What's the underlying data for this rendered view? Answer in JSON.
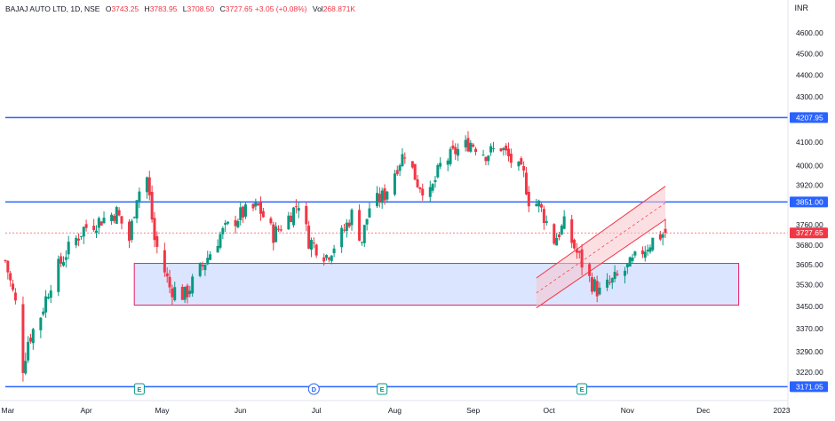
{
  "legend": {
    "symbol": "BAJAJ AUTO LTD, 1D, NSE",
    "open_label": "O",
    "open": "3743.25",
    "high_label": "H",
    "high": "3783.95",
    "low_label": "L",
    "low": "3708.50",
    "close_label": "C",
    "close": "3727.65",
    "change": "+3.05 (+0.08%)",
    "vol_label": "Vol",
    "volume": "268.871K"
  },
  "currency": "INR",
  "colors": {
    "up": "#089981",
    "down": "#f23645",
    "line": "#2962ff",
    "zone_fill": "#dbe5ff",
    "zone_border": "#e91e63",
    "channel_fill": "#f7c5cc",
    "channel_border": "#f23645",
    "axis_text": "#131722",
    "grid": "#f0f3fa"
  },
  "chart_data": {
    "type": "candlestick",
    "x_ticks": [
      "Mar",
      "Apr",
      "May",
      "Jun",
      "Jul",
      "Aug",
      "Sep",
      "Oct",
      "Nov",
      "Dec",
      "2023"
    ],
    "y_ticks": [
      "3220.00",
      "3290.00",
      "3370.00",
      "3450.00",
      "3530.00",
      "3605.00",
      "3680.00",
      "3760.00",
      "3920.00",
      "4000.00",
      "4100.00",
      "4200.00",
      "4300.00",
      "4400.00",
      "4500.00",
      "4600.00"
    ],
    "y_scale": "log",
    "horizontal_levels": [
      "4207.95",
      "3851.00",
      "3171.05"
    ],
    "last_price": "3727.65",
    "support_zone": {
      "low": 3455,
      "high": 3610,
      "from": "2022-04-20",
      "to": "2022-12-15"
    },
    "rising_channel": {
      "upper": {
        "from": [
          "2022-09-26",
          3555
        ],
        "to": [
          "2022-11-16",
          3915
        ]
      },
      "lower": {
        "from": [
          "2022-09-26",
          3445
        ],
        "to": [
          "2022-11-16",
          3780
        ]
      }
    },
    "event_markers": [
      {
        "label": "E",
        "date": "2022-04-22"
      },
      {
        "label": "D",
        "date": "2022-06-30"
      },
      {
        "label": "E",
        "date": "2022-07-27"
      },
      {
        "label": "E",
        "date": "2022-10-14"
      }
    ],
    "close_path": [
      [
        "2022-02-28",
        3620
      ],
      [
        "2022-03-04",
        3460
      ],
      [
        "2022-03-07",
        3240
      ],
      [
        "2022-03-09",
        3330
      ],
      [
        "2022-03-14",
        3420
      ],
      [
        "2022-03-18",
        3540
      ],
      [
        "2022-03-24",
        3650
      ],
      [
        "2022-03-31",
        3745
      ],
      [
        "2022-04-07",
        3780
      ],
      [
        "2022-04-13",
        3810
      ],
      [
        "2022-04-18",
        3700
      ],
      [
        "2022-04-21",
        3880
      ],
      [
        "2022-04-25",
        3950
      ],
      [
        "2022-04-28",
        3700
      ],
      [
        "2022-05-04",
        3520
      ],
      [
        "2022-05-10",
        3490
      ],
      [
        "2022-05-17",
        3600
      ],
      [
        "2022-05-24",
        3720
      ],
      [
        "2022-06-01",
        3800
      ],
      [
        "2022-06-08",
        3830
      ],
      [
        "2022-06-14",
        3720
      ],
      [
        "2022-06-20",
        3790
      ],
      [
        "2022-06-24",
        3850
      ],
      [
        "2022-06-28",
        3700
      ],
      [
        "2022-07-05",
        3640
      ],
      [
        "2022-07-11",
        3720
      ],
      [
        "2022-07-15",
        3800
      ],
      [
        "2022-07-19",
        3700
      ],
      [
        "2022-07-22",
        3830
      ],
      [
        "2022-07-28",
        3880
      ],
      [
        "2022-08-02",
        4000
      ],
      [
        "2022-08-05",
        4060
      ],
      [
        "2022-08-10",
        3930
      ],
      [
        "2022-08-15",
        3880
      ],
      [
        "2022-08-19",
        4000
      ],
      [
        "2022-08-25",
        4060
      ],
      [
        "2022-08-31",
        4100
      ],
      [
        "2022-09-06",
        4050
      ],
      [
        "2022-09-12",
        4080
      ],
      [
        "2022-09-16",
        4020
      ],
      [
        "2022-09-21",
        3960
      ],
      [
        "2022-09-23",
        3860
      ],
      [
        "2022-09-27",
        3840
      ],
      [
        "2022-10-03",
        3700
      ],
      [
        "2022-10-07",
        3760
      ],
      [
        "2022-10-12",
        3650
      ],
      [
        "2022-10-17",
        3550
      ],
      [
        "2022-10-21",
        3500
      ],
      [
        "2022-10-26",
        3540
      ],
      [
        "2022-11-02",
        3600
      ],
      [
        "2022-11-07",
        3660
      ],
      [
        "2022-11-11",
        3700
      ],
      [
        "2022-11-16",
        3730
      ]
    ],
    "last_candle": {
      "open": 3743.25,
      "high": 3783.95,
      "low": 3708.5,
      "close": 3727.65
    }
  }
}
